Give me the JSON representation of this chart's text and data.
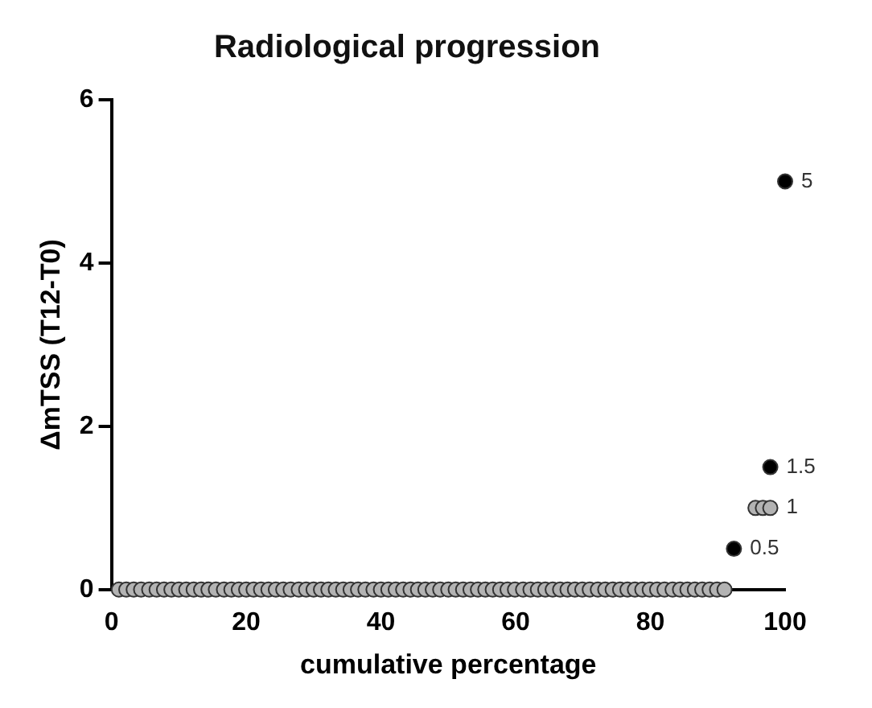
{
  "chart_data": {
    "type": "scatter",
    "title": "Radiological progression",
    "xlabel": "cumulative percentage",
    "ylabel": "ΔmTSS (T12-T0)",
    "series": [
      {
        "color": "#b3b3b3",
        "x": [
          1.1,
          2.2,
          3.3,
          4.4,
          5.6,
          6.7,
          7.8,
          8.9,
          10,
          11.1,
          12.2,
          13.3,
          14.4,
          15.5,
          16.7,
          17.8,
          18.9,
          20,
          21.1,
          22.2,
          23.3,
          24.4,
          25.5,
          26.6,
          27.8,
          28.9,
          30,
          31.1,
          32.2,
          33.3,
          34.4,
          35.5,
          36.6,
          37.7,
          38.9,
          40,
          41.1,
          42.2,
          43.3,
          44.4,
          45.5,
          46.6,
          47.7,
          48.8,
          50,
          51.1,
          52.2,
          53.3,
          54.4,
          55.5,
          56.6,
          57.7,
          58.8,
          59.9,
          61.1,
          62.2,
          63.3,
          64.4,
          65.5,
          66.6,
          67.7,
          68.8,
          69.9,
          71,
          72.2,
          73.3,
          74.4,
          75.5,
          76.6,
          77.7,
          78.8,
          79.9,
          81,
          82.1,
          83.3,
          84.4,
          85.5,
          86.6,
          87.7,
          88.8,
          89.9,
          91,
          95.6,
          96.7,
          97.8
        ],
        "values": [
          0,
          0,
          0,
          0,
          0,
          0,
          0,
          0,
          0,
          0,
          0,
          0,
          0,
          0,
          0,
          0,
          0,
          0,
          0,
          0,
          0,
          0,
          0,
          0,
          0,
          0,
          0,
          0,
          0,
          0,
          0,
          0,
          0,
          0,
          0,
          0,
          0,
          0,
          0,
          0,
          0,
          0,
          0,
          0,
          0,
          0,
          0,
          0,
          0,
          0,
          0,
          0,
          0,
          0,
          0,
          0,
          0,
          0,
          0,
          0,
          0,
          0,
          0,
          0,
          0,
          0,
          0,
          0,
          0,
          0,
          0,
          0,
          0,
          0,
          0,
          0,
          0,
          0,
          0,
          0,
          0,
          0,
          1,
          1,
          1
        ]
      },
      {
        "color": "#000000",
        "x": [
          92.4,
          97.8,
          100
        ],
        "values": [
          0.5,
          1.5,
          5
        ]
      }
    ],
    "annotations": [
      {
        "text": "0.5",
        "x": 92.4,
        "y": 0.5
      },
      {
        "text": "1",
        "x": 97.8,
        "y": 1
      },
      {
        "text": "1.5",
        "x": 97.8,
        "y": 1.5
      },
      {
        "text": "5",
        "x": 100,
        "y": 5
      }
    ],
    "xlim": [
      0,
      100
    ],
    "xticks": [
      0,
      20,
      40,
      60,
      80,
      100
    ],
    "ylim": [
      0,
      6
    ],
    "yticks": [
      0,
      2,
      4,
      6
    ],
    "grid": false,
    "legend": false,
    "marker": "circle"
  }
}
